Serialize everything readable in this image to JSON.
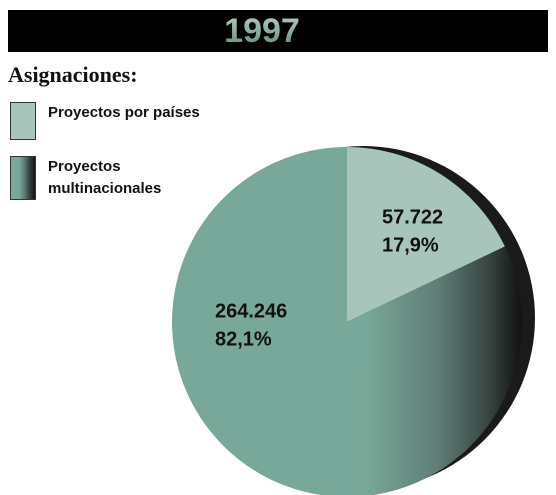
{
  "chart_data": {
    "type": "pie",
    "title": "1997",
    "subtitle": "Asignaciones:",
    "categories": [
      "Proyectos por países",
      "Proyectos multinacionales"
    ],
    "values": [
      17.9,
      82.1
    ],
    "value_labels": [
      "17,9%",
      "82,1%"
    ],
    "amounts": [
      57722,
      264246
    ],
    "amount_labels": [
      "57.722",
      "264.246"
    ],
    "colors": [
      "#a8c5bc",
      "#78a899"
    ],
    "legend": "top-left"
  }
}
